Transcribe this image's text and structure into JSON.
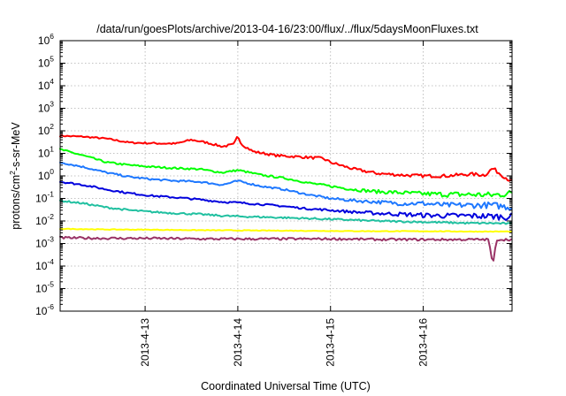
{
  "chart_data": {
    "type": "line",
    "title": "/data/run/goesPlots/archive/2013-04-16/23:00/flux/../flux/5daysMoonFluxes.txt",
    "xlabel": "Coordinated Universal Time (UTC)",
    "ylabel": "protons/cm²-s-sr-MeV",
    "ylabel_parts": {
      "base": "protons/cm",
      "sup": "2",
      "rest": "-s-sr-MeV"
    },
    "yscale": "log",
    "ylim": [
      1e-06,
      1000000.0
    ],
    "y_ticks": [
      {
        "base": "10",
        "exp": "-6"
      },
      {
        "base": "10",
        "exp": "-5"
      },
      {
        "base": "10",
        "exp": "-4"
      },
      {
        "base": "10",
        "exp": "-3"
      },
      {
        "base": "10",
        "exp": "-2"
      },
      {
        "base": "10",
        "exp": "-1"
      },
      {
        "base": "10",
        "exp": "0"
      },
      {
        "base": "10",
        "exp": "1"
      },
      {
        "base": "10",
        "exp": "2"
      },
      {
        "base": "10",
        "exp": "3"
      },
      {
        "base": "10",
        "exp": "4"
      },
      {
        "base": "10",
        "exp": "5"
      },
      {
        "base": "10",
        "exp": "6"
      }
    ],
    "xlim": [
      "2013-04-12 02:00",
      "2013-04-16 23:00"
    ],
    "x_ticks": [
      "2013-4-13",
      "2013-4-14",
      "2013-4-15",
      "2013-4-16"
    ],
    "grid": true,
    "series": [
      {
        "color": "#ff0000",
        "points": [
          [
            "2013-04-12 02:00",
            60
          ],
          [
            "2013-04-12 08:00",
            55
          ],
          [
            "2013-04-12 14:00",
            45
          ],
          [
            "2013-04-12 20:00",
            30
          ],
          [
            "2013-04-13 02:00",
            28
          ],
          [
            "2013-04-13 08:00",
            27
          ],
          [
            "2013-04-13 12:00",
            40
          ],
          [
            "2013-04-13 16:00",
            30
          ],
          [
            "2013-04-13 20:00",
            20
          ],
          [
            "2013-04-13 23:00",
            25
          ],
          [
            "2013-04-14 00:00",
            60
          ],
          [
            "2013-04-14 01:00",
            25
          ],
          [
            "2013-04-14 04:00",
            12
          ],
          [
            "2013-04-14 10:00",
            8
          ],
          [
            "2013-04-14 16:00",
            7
          ],
          [
            "2013-04-14 22:00",
            6
          ],
          [
            "2013-04-15 00:00",
            4
          ],
          [
            "2013-04-15 06:00",
            2
          ],
          [
            "2013-04-15 12:00",
            1.3
          ],
          [
            "2013-04-15 18:00",
            1.1
          ],
          [
            "2013-04-16 00:00",
            1.0
          ],
          [
            "2013-04-16 06:00",
            1.0
          ],
          [
            "2013-04-16 12:00",
            1.2
          ],
          [
            "2013-04-16 16:00",
            1.1
          ],
          [
            "2013-04-16 18:00",
            2.2
          ],
          [
            "2013-04-16 20:00",
            1.2
          ],
          [
            "2013-04-16 23:00",
            0.55
          ]
        ]
      },
      {
        "color": "#00ff00",
        "points": [
          [
            "2013-04-12 02:00",
            15
          ],
          [
            "2013-04-12 08:00",
            8
          ],
          [
            "2013-04-12 14:00",
            4
          ],
          [
            "2013-04-12 20:00",
            3
          ],
          [
            "2013-04-13 02:00",
            2.5
          ],
          [
            "2013-04-13 08:00",
            2.2
          ],
          [
            "2013-04-13 14:00",
            2
          ],
          [
            "2013-04-13 20:00",
            1.4
          ],
          [
            "2013-04-14 00:00",
            1.8
          ],
          [
            "2013-04-14 06:00",
            1.1
          ],
          [
            "2013-04-14 12:00",
            0.8
          ],
          [
            "2013-04-14 18:00",
            0.5
          ],
          [
            "2013-04-15 00:00",
            0.35
          ],
          [
            "2013-04-15 06:00",
            0.25
          ],
          [
            "2013-04-15 12:00",
            0.2
          ],
          [
            "2013-04-15 18:00",
            0.18
          ],
          [
            "2013-04-16 00:00",
            0.16
          ],
          [
            "2013-04-16 06:00",
            0.15
          ],
          [
            "2013-04-16 12:00",
            0.15
          ],
          [
            "2013-04-16 18:00",
            0.14
          ],
          [
            "2013-04-16 23:00",
            0.17
          ]
        ]
      },
      {
        "color": "#1e78ff",
        "points": [
          [
            "2013-04-12 02:00",
            4
          ],
          [
            "2013-04-12 08:00",
            2.5
          ],
          [
            "2013-04-12 14:00",
            1.4
          ],
          [
            "2013-04-12 20:00",
            0.9
          ],
          [
            "2013-04-13 02:00",
            0.7
          ],
          [
            "2013-04-13 08:00",
            0.6
          ],
          [
            "2013-04-13 14:00",
            0.55
          ],
          [
            "2013-04-13 20:00",
            0.4
          ],
          [
            "2013-04-14 00:00",
            0.6
          ],
          [
            "2013-04-14 06:00",
            0.35
          ],
          [
            "2013-04-14 12:00",
            0.25
          ],
          [
            "2013-04-14 18:00",
            0.15
          ],
          [
            "2013-04-15 00:00",
            0.1
          ],
          [
            "2013-04-15 06:00",
            0.08
          ],
          [
            "2013-04-15 12:00",
            0.07
          ],
          [
            "2013-04-15 18:00",
            0.06
          ],
          [
            "2013-04-16 00:00",
            0.06
          ],
          [
            "2013-04-16 06:00",
            0.05
          ],
          [
            "2013-04-16 12:00",
            0.05
          ],
          [
            "2013-04-16 18:00",
            0.05
          ],
          [
            "2013-04-16 23:00",
            0.04
          ]
        ]
      },
      {
        "color": "#0000dd",
        "points": [
          [
            "2013-04-12 02:00",
            0.55
          ],
          [
            "2013-04-12 08:00",
            0.4
          ],
          [
            "2013-04-12 14:00",
            0.25
          ],
          [
            "2013-04-12 20:00",
            0.17
          ],
          [
            "2013-04-13 02:00",
            0.13
          ],
          [
            "2013-04-13 08:00",
            0.11
          ],
          [
            "2013-04-13 14:00",
            0.09
          ],
          [
            "2013-04-13 20:00",
            0.07
          ],
          [
            "2013-04-14 00:00",
            0.065
          ],
          [
            "2013-04-14 06:00",
            0.055
          ],
          [
            "2013-04-14 12:00",
            0.045
          ],
          [
            "2013-04-14 18:00",
            0.035
          ],
          [
            "2013-04-15 00:00",
            0.03
          ],
          [
            "2013-04-15 06:00",
            0.025
          ],
          [
            "2013-04-15 12:00",
            0.022
          ],
          [
            "2013-04-15 18:00",
            0.02
          ],
          [
            "2013-04-16 00:00",
            0.018
          ],
          [
            "2013-04-16 06:00",
            0.017
          ],
          [
            "2013-04-16 12:00",
            0.017
          ],
          [
            "2013-04-16 18:00",
            0.016
          ],
          [
            "2013-04-16 23:00",
            0.015
          ]
        ]
      },
      {
        "color": "#20c0a0",
        "points": [
          [
            "2013-04-12 02:00",
            0.08
          ],
          [
            "2013-04-12 08:00",
            0.06
          ],
          [
            "2013-04-12 14:00",
            0.04
          ],
          [
            "2013-04-12 20:00",
            0.03
          ],
          [
            "2013-04-13 02:00",
            0.025
          ],
          [
            "2013-04-13 08:00",
            0.022
          ],
          [
            "2013-04-13 14:00",
            0.02
          ],
          [
            "2013-04-13 20:00",
            0.017
          ],
          [
            "2013-04-14 00:00",
            0.016
          ],
          [
            "2013-04-14 06:00",
            0.015
          ],
          [
            "2013-04-14 12:00",
            0.014
          ],
          [
            "2013-04-14 18:00",
            0.013
          ],
          [
            "2013-04-15 00:00",
            0.012
          ],
          [
            "2013-04-15 06:00",
            0.011
          ],
          [
            "2013-04-15 12:00",
            0.01
          ],
          [
            "2013-04-15 18:00",
            0.0095
          ],
          [
            "2013-04-16 00:00",
            0.009
          ],
          [
            "2013-04-16 06:00",
            0.0085
          ],
          [
            "2013-04-16 12:00",
            0.008
          ],
          [
            "2013-04-16 18:00",
            0.008
          ],
          [
            "2013-04-16 23:00",
            0.0075
          ]
        ]
      },
      {
        "color": "#ffff00",
        "points": [
          [
            "2013-04-12 02:00",
            0.0045
          ],
          [
            "2013-04-12 14:00",
            0.0042
          ],
          [
            "2013-04-13 02:00",
            0.0041
          ],
          [
            "2013-04-13 14:00",
            0.0039
          ],
          [
            "2013-04-14 02:00",
            0.0038
          ],
          [
            "2013-04-14 14:00",
            0.0037
          ],
          [
            "2013-04-15 02:00",
            0.0036
          ],
          [
            "2013-04-15 14:00",
            0.0035
          ],
          [
            "2013-04-16 02:00",
            0.0035
          ],
          [
            "2013-04-16 14:00",
            0.0034
          ],
          [
            "2013-04-16 23:00",
            0.0034
          ]
        ]
      },
      {
        "color": "#993366",
        "points": [
          [
            "2013-04-12 02:00",
            0.0018
          ],
          [
            "2013-04-12 14:00",
            0.0017
          ],
          [
            "2013-04-13 02:00",
            0.0017
          ],
          [
            "2013-04-13 14:00",
            0.0016
          ],
          [
            "2013-04-14 02:00",
            0.0016
          ],
          [
            "2013-04-14 14:00",
            0.0016
          ],
          [
            "2013-04-15 02:00",
            0.0016
          ],
          [
            "2013-04-15 14:00",
            0.0015
          ],
          [
            "2013-04-16 02:00",
            0.0015
          ],
          [
            "2013-04-16 14:00",
            0.0015
          ],
          [
            "2013-04-16 17:00",
            0.0015
          ],
          [
            "2013-04-16 18:00",
            0.0001
          ],
          [
            "2013-04-16 19:00",
            0.0015
          ],
          [
            "2013-04-16 23:00",
            0.0015
          ]
        ]
      }
    ]
  }
}
